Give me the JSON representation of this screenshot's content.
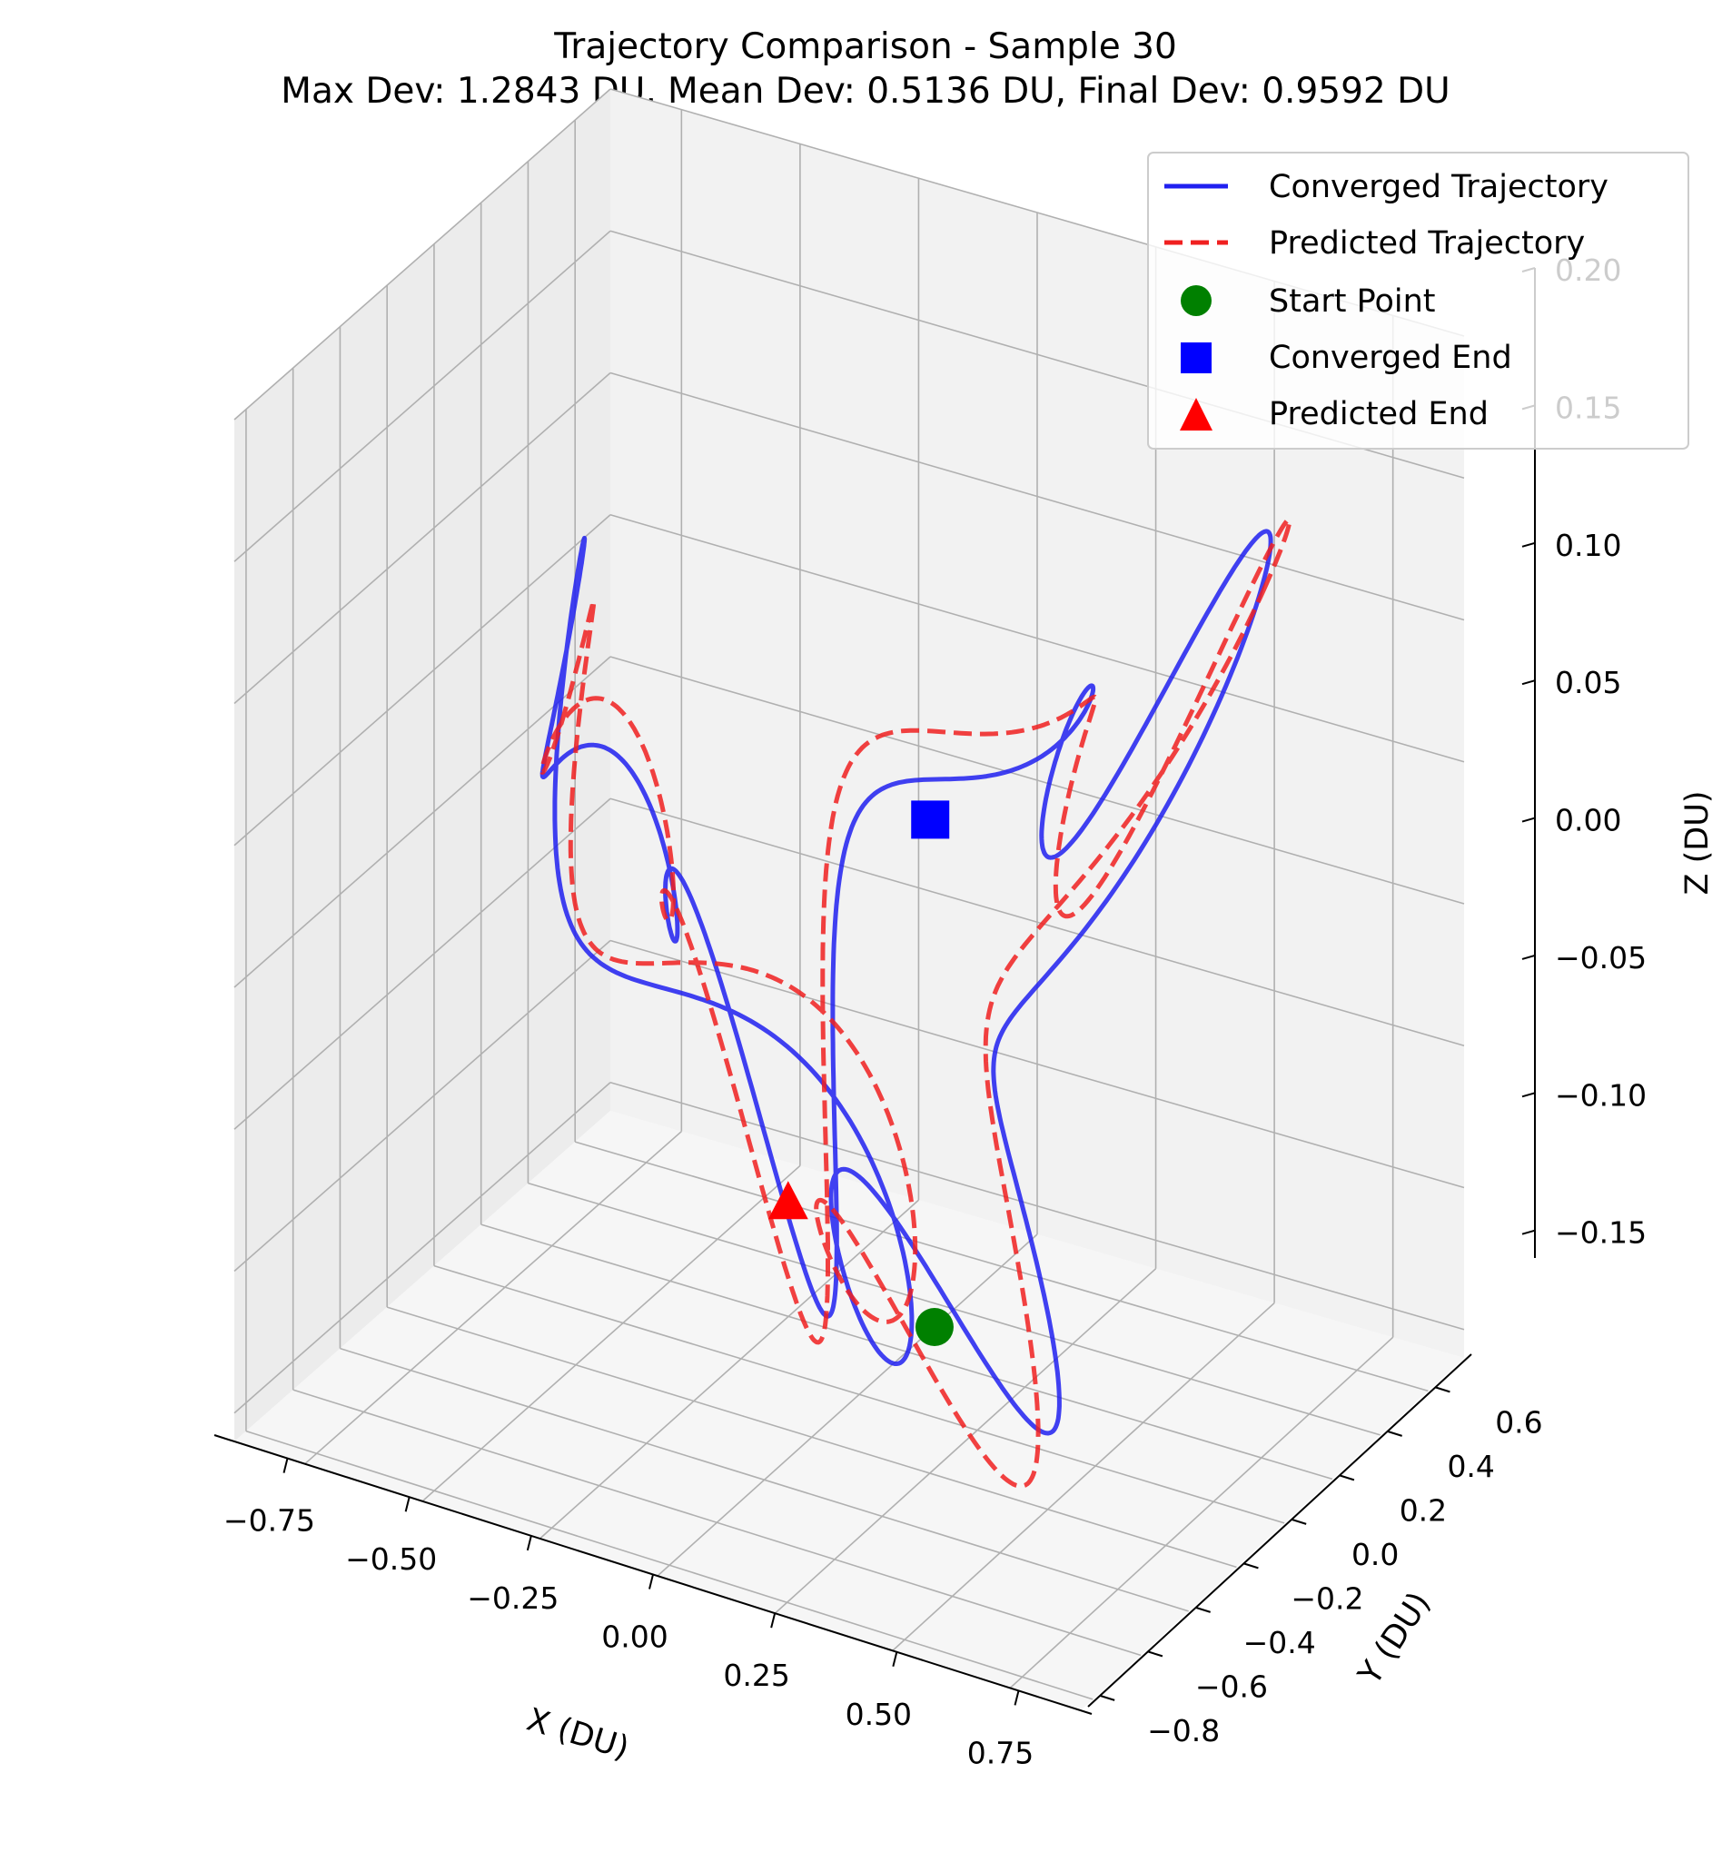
{
  "chart_data": {
    "type": "line",
    "projection": "3d",
    "title": "Trajectory Comparison - Sample 30",
    "subtitle": "Max Dev: 1.2843 DU, Mean Dev: 0.5136 DU, Final Dev: 0.9592 DU",
    "xlabel": "X (DU)",
    "ylabel": "Y (DU)",
    "zlabel": "Z (DU)",
    "xlim": [
      -0.9,
      0.9
    ],
    "ylim": [
      -0.85,
      0.75
    ],
    "zlim": [
      -0.16,
      0.2
    ],
    "xticks": [
      -0.75,
      -0.5,
      -0.25,
      0.0,
      0.25,
      0.5,
      0.75
    ],
    "xtick_labels": [
      "−0.75",
      "−0.50",
      "−0.25",
      "0.00",
      "0.25",
      "0.50",
      "0.75"
    ],
    "yticks": [
      -0.8,
      -0.6,
      -0.4,
      -0.2,
      0.0,
      0.2,
      0.4,
      0.6
    ],
    "ytick_labels": [
      "−0.8",
      "−0.6",
      "−0.4",
      "−0.2",
      "0.0",
      "0.2",
      "0.4",
      "0.6"
    ],
    "zticks": [
      -0.15,
      -0.1,
      -0.05,
      0.0,
      0.05,
      0.1,
      0.15,
      0.2
    ],
    "ztick_labels": [
      "−0.15",
      "−0.10",
      "−0.05",
      "0.00",
      "0.05",
      "0.10",
      "0.15",
      "0.20"
    ],
    "grid": true,
    "legend_position": "top-right",
    "series": [
      {
        "name": "Converged Trajectory",
        "color": "#2020f0",
        "style": "solid",
        "terms": {
          "x": [
            [
              0.55,
              1,
              1.9
            ],
            [
              0.08,
              3,
              0.4
            ],
            [
              0.12,
              7,
              1.1
            ]
          ],
          "y": [
            [
              0.52,
              1,
              0.3
            ],
            [
              0.1,
              4,
              2.0
            ],
            [
              0.14,
              6,
              0.6
            ]
          ],
          "z": [
            [
              0.1,
              2,
              0.8
            ],
            [
              0.04,
              5,
              1.7
            ],
            [
              0.03,
              9,
              0.2
            ]
          ]
        }
      },
      {
        "name": "Predicted Trajectory",
        "color": "#f02020",
        "style": "dashed",
        "terms": {
          "x": [
            [
              0.55,
              1,
              1.9
            ],
            [
              0.08,
              3,
              0.4
            ],
            [
              0.12,
              7,
              1.1
            ],
            [
              0.03,
              2,
              0.5
            ]
          ],
          "y": [
            [
              0.52,
              1,
              0.3
            ],
            [
              0.1,
              4,
              2.0
            ],
            [
              0.14,
              6,
              0.6
            ],
            [
              0.04,
              3,
              1.2
            ]
          ],
          "z": [
            [
              0.1,
              2,
              0.8
            ],
            [
              0.04,
              5,
              1.7
            ],
            [
              0.03,
              9,
              0.2
            ],
            [
              0.02,
              4,
              2.5
            ]
          ]
        }
      }
    ],
    "markers": [
      {
        "name": "Start Point",
        "shape": "circle",
        "color": "#008000",
        "point": [
          0.25,
          -0.18,
          -0.11
        ]
      },
      {
        "name": "Converged End",
        "shape": "square",
        "color": "#0000ff",
        "point": [
          0.1,
          0.1,
          0.04
        ]
      },
      {
        "name": "Predicted End",
        "shape": "triangle",
        "color": "#ff0000",
        "point": [
          -0.05,
          -0.2,
          -0.08
        ]
      }
    ]
  }
}
